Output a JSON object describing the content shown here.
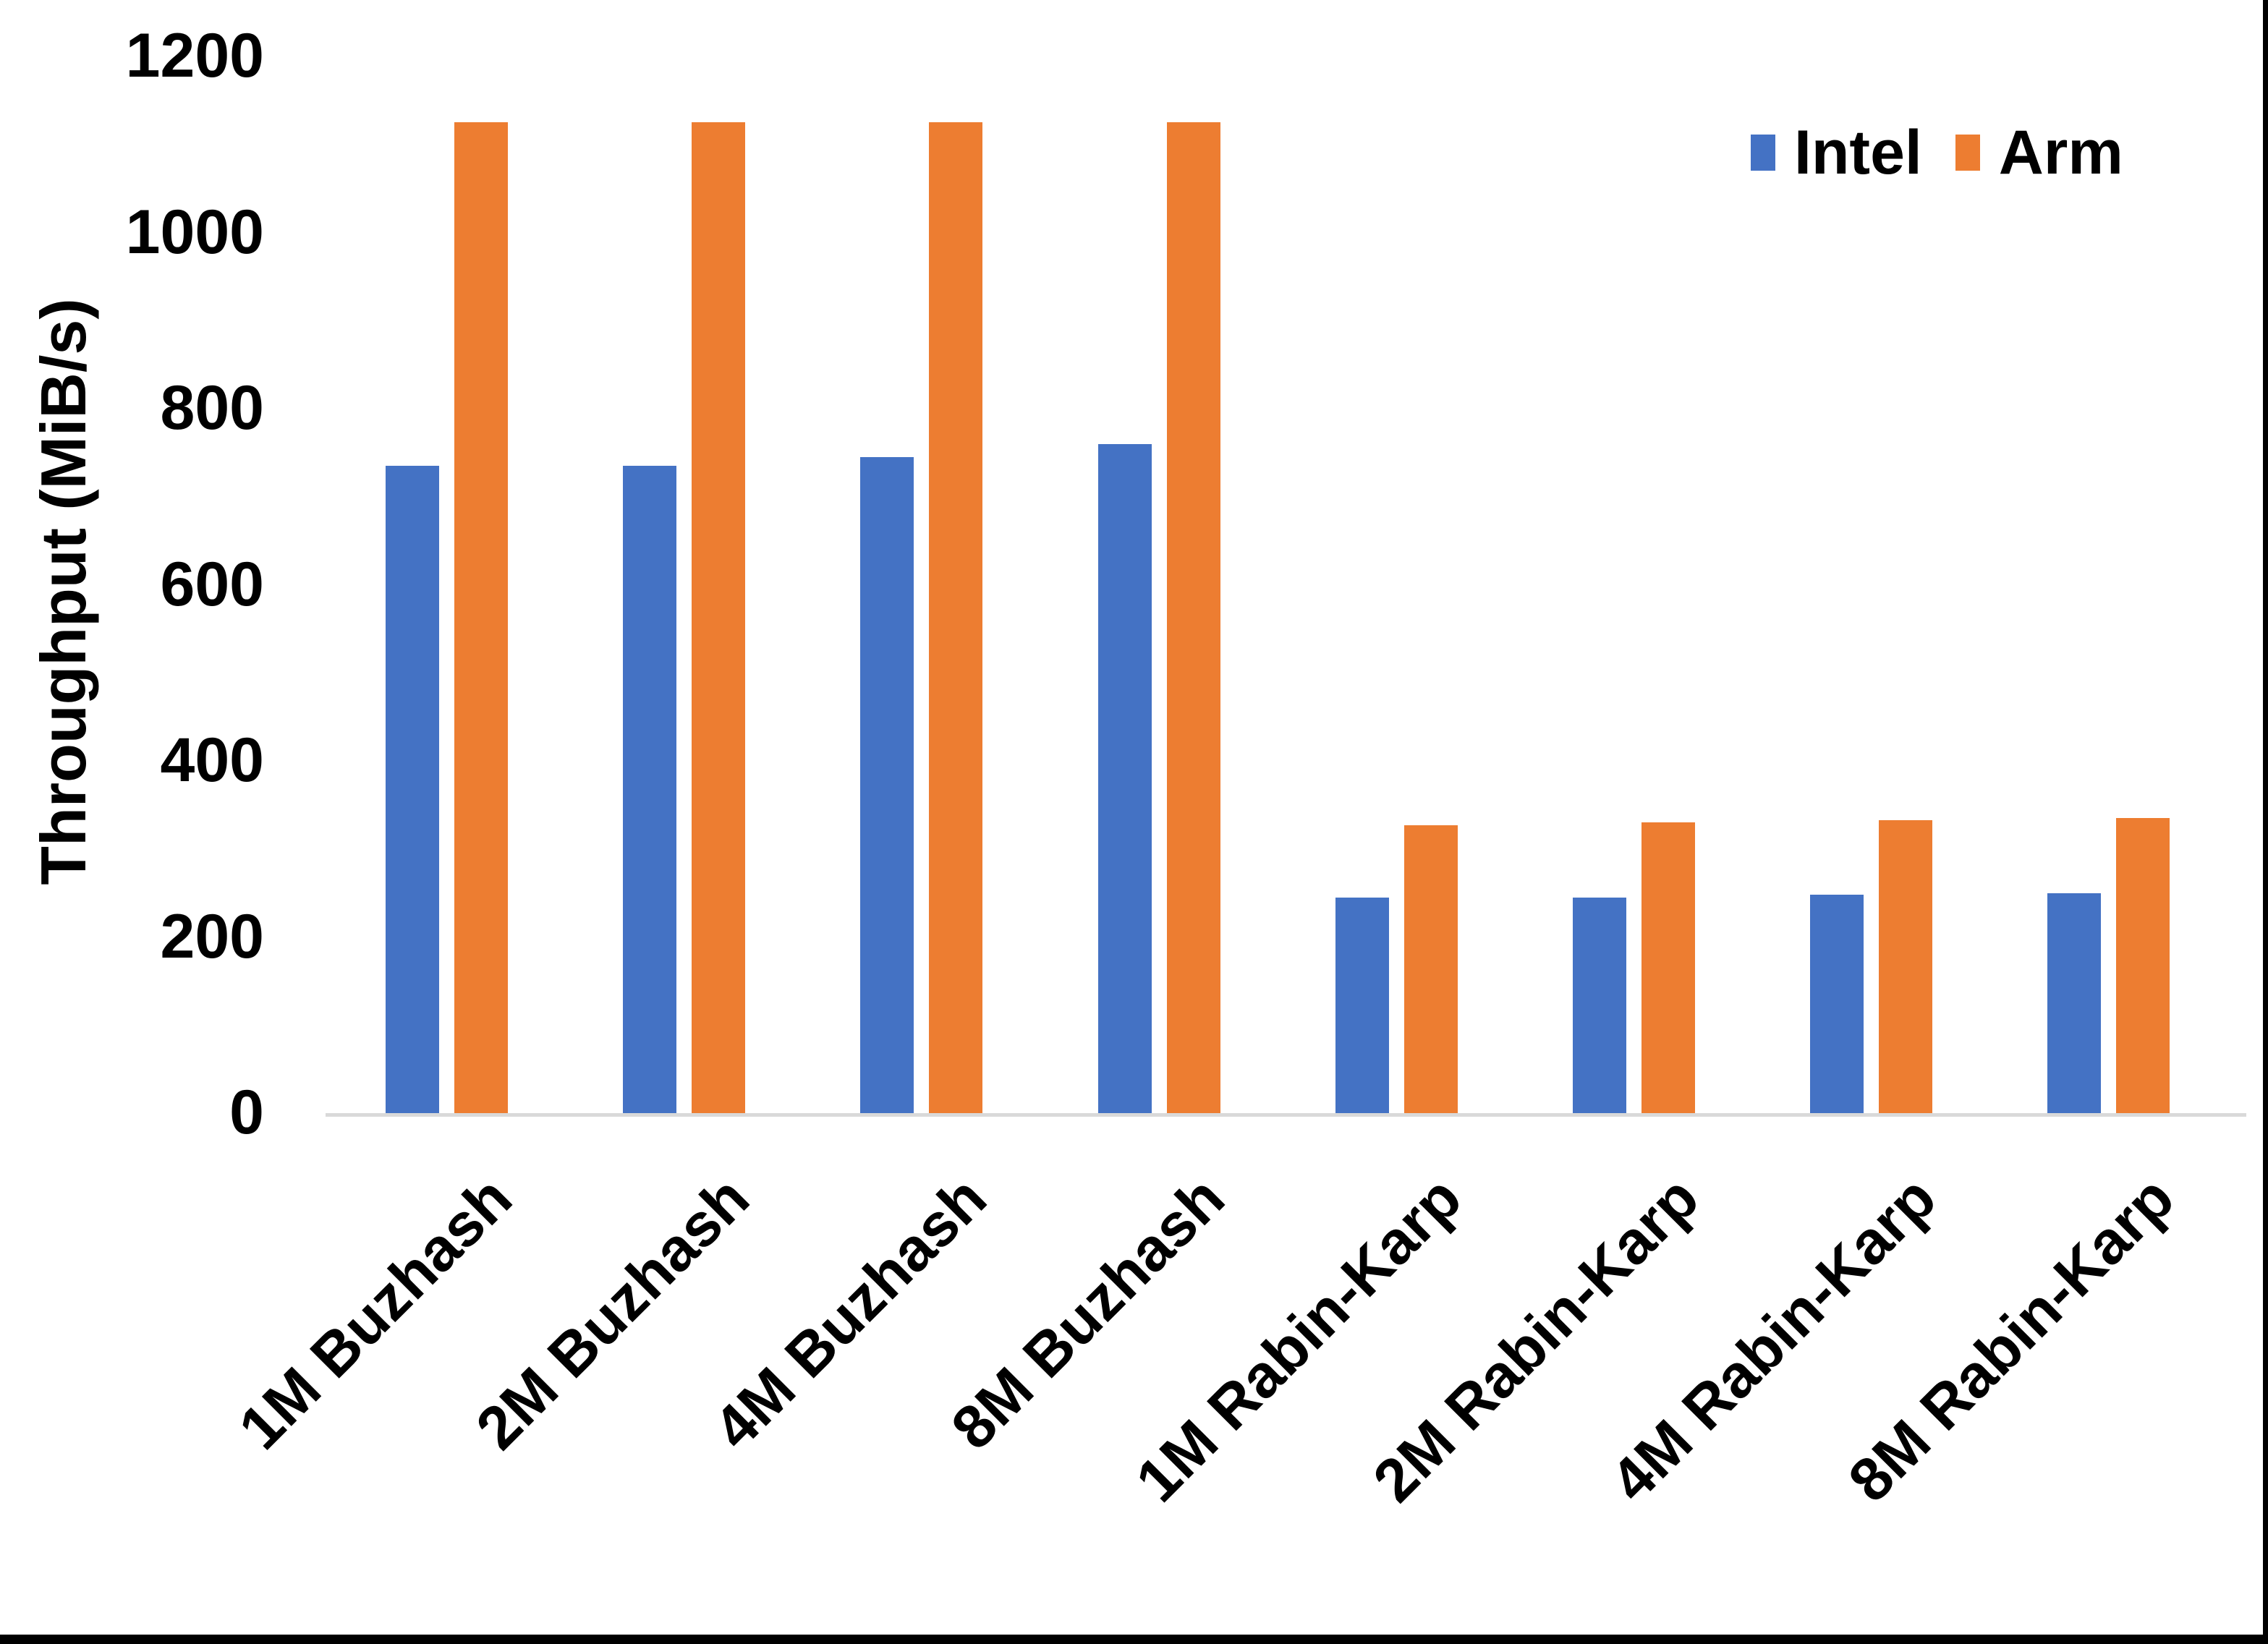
{
  "chart_data": {
    "type": "bar",
    "title": "",
    "xlabel": "",
    "ylabel": "Throughput (MiB/s)",
    "categories": [
      "1M Buzhash",
      "2M Buzhash",
      "4M Buzhash",
      "8M Buzhash",
      "1M Rabin-Karp",
      "2M Rabin-Karp",
      "4M Rabin-Karp",
      "8M Rabin-Karp"
    ],
    "series": [
      {
        "name": "Intel",
        "color": "#4472C4",
        "values": [
          735,
          735,
          745,
          760,
          245,
          245,
          248,
          250
        ]
      },
      {
        "name": "Arm",
        "color": "#ED7D31",
        "values": [
          1125,
          1125,
          1125,
          1125,
          327,
          330,
          333,
          335
        ]
      }
    ],
    "ylim": [
      0,
      1200
    ],
    "yticks": [
      0,
      200,
      400,
      600,
      800,
      1000,
      1200
    ],
    "grid": false,
    "legend_position": "top-right",
    "category_label_rotation_deg": 45
  },
  "colors": {
    "intel": "#4472C4",
    "arm": "#ED7D31",
    "axis_line": "#D9D9D9",
    "text": "#000000",
    "background": "#FFFFFF",
    "page_edge": "#000000"
  }
}
